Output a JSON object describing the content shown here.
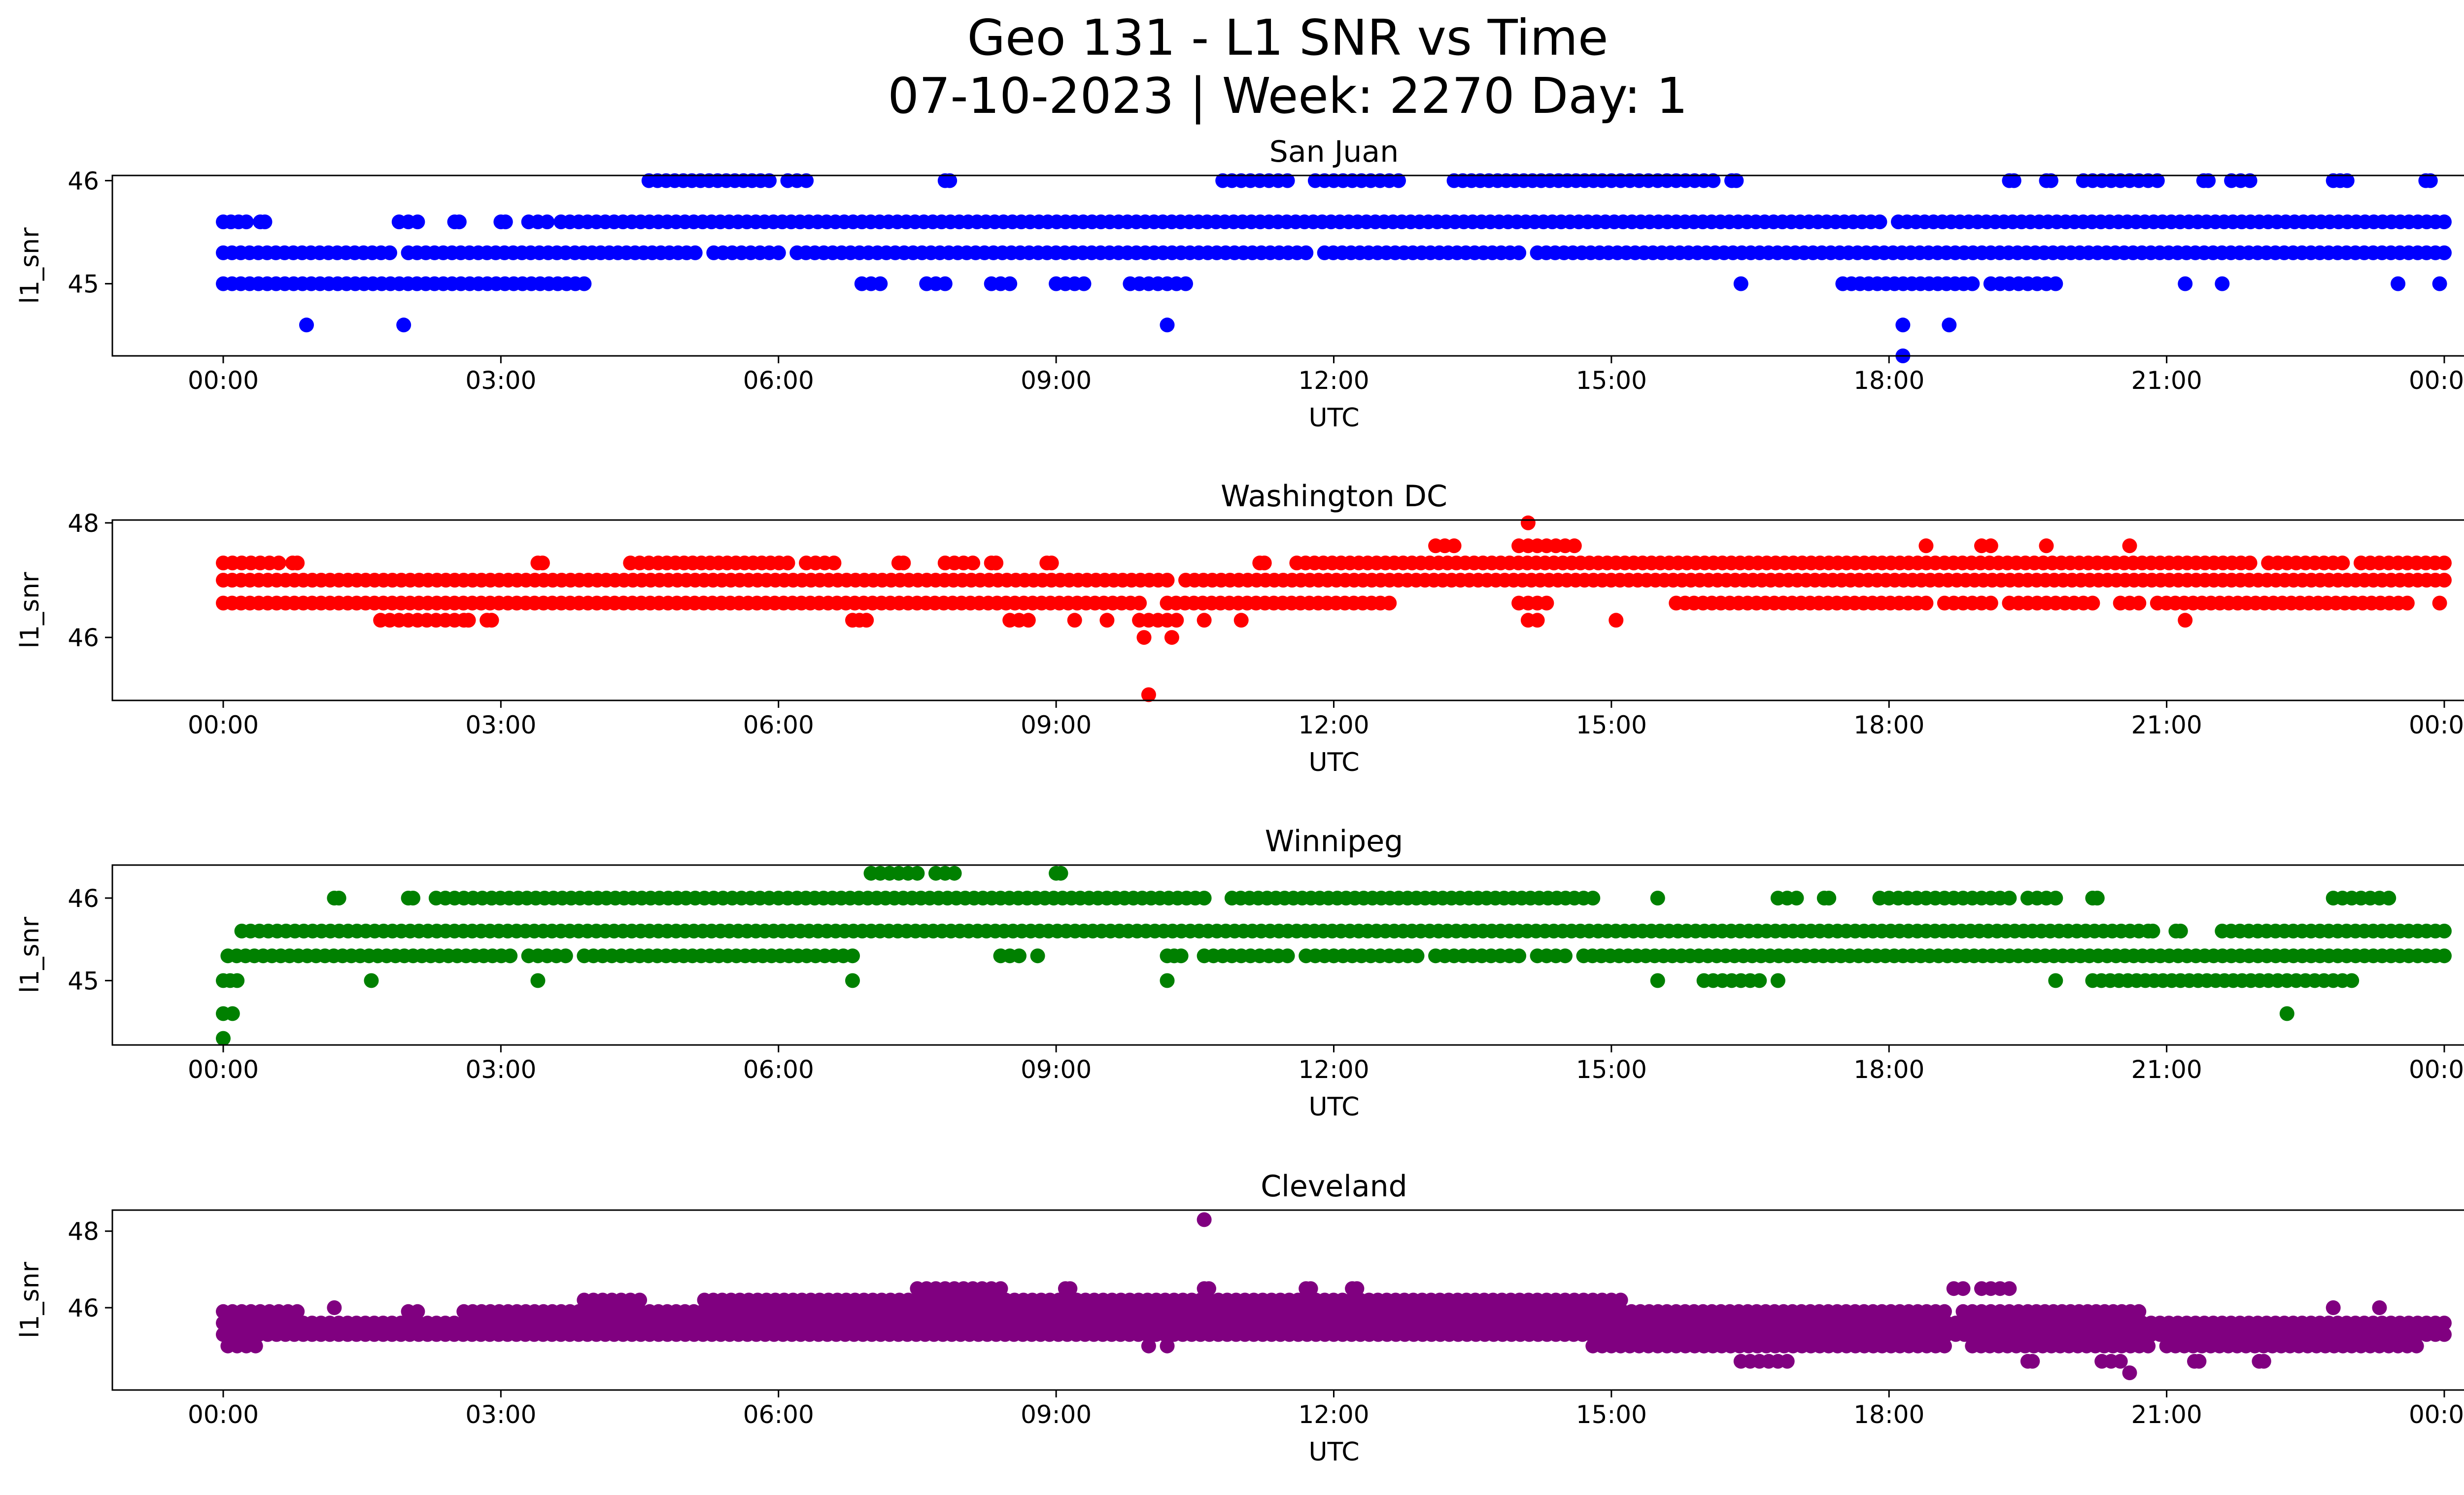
{
  "figure": {
    "title_line1": "Geo 131 - L1 SNR vs Time",
    "title_line2": "07-10-2023 | Week: 2270 Day: 1"
  },
  "chart_data": [
    {
      "type": "scatter",
      "title": "San Juan",
      "xlabel": "UTC",
      "ylabel": "l1_snr",
      "color": "#0000ff",
      "xlim": [
        "2023-07-10 00:00",
        "2023-07-11 00:00"
      ],
      "ylim": [
        44.3,
        46.05
      ],
      "xticks": [
        "00:00",
        "03:00",
        "06:00",
        "09:00",
        "12:00",
        "15:00",
        "18:00",
        "21:00",
        "00:00"
      ],
      "yticks": [
        45,
        46
      ],
      "x_unit": "hours UTC",
      "series": [
        {
          "y": 45.3,
          "ranges": [
            [
              0.0,
              1.8
            ],
            [
              2.0,
              3.7
            ],
            [
              3.8,
              5.1
            ],
            [
              5.3,
              6.0
            ],
            [
              6.2,
              11.7
            ],
            [
              11.9,
              14.0
            ],
            [
              14.2,
              24.0
            ]
          ]
        },
        {
          "y": 45.6,
          "ranges": [
            [
              0.0,
              0.25
            ],
            [
              0.4,
              0.45
            ],
            [
              1.9,
              2.1
            ],
            [
              2.5,
              2.55
            ],
            [
              3.0,
              3.05
            ],
            [
              3.3,
              3.5
            ],
            [
              3.65,
              17.9
            ],
            [
              18.1,
              24.0
            ]
          ]
        },
        {
          "y": 45.0,
          "ranges": [
            [
              0.0,
              3.9
            ],
            [
              6.9,
              7.1
            ],
            [
              7.6,
              7.8
            ],
            [
              8.3,
              8.5
            ],
            [
              9.0,
              9.3
            ],
            [
              9.8,
              10.4
            ],
            [
              17.5,
              18.9
            ],
            [
              19.1,
              19.8
            ]
          ]
        },
        {
          "y": 46.0,
          "ranges": [
            [
              4.6,
              5.9
            ],
            [
              6.1,
              6.3
            ],
            [
              7.8,
              7.85
            ],
            [
              10.8,
              11.3
            ],
            [
              11.4,
              11.5
            ],
            [
              11.8,
              12.7
            ],
            [
              13.3,
              14.9
            ],
            [
              15.0,
              16.1
            ],
            [
              16.3,
              16.35
            ],
            [
              19.3,
              19.35
            ],
            [
              19.7,
              19.75
            ],
            [
              20.1,
              20.7
            ],
            [
              20.8,
              20.9
            ],
            [
              21.4,
              21.45
            ],
            [
              21.7,
              21.9
            ],
            [
              22.8,
              22.95
            ],
            [
              23.8,
              23.85
            ]
          ]
        },
        {
          "y": 44.6,
          "points": [
            0.9,
            1.95,
            10.2,
            18.15,
            18.65
          ]
        },
        {
          "y": 44.3,
          "points": [
            18.15
          ]
        },
        {
          "y": 45.0,
          "points": [
            16.4,
            21.2,
            21.6,
            23.5,
            23.95
          ]
        }
      ]
    },
    {
      "type": "scatter",
      "title": "Washington DC",
      "xlabel": "UTC",
      "ylabel": "l1_snr",
      "color": "#ff0000",
      "xlim": [
        "2023-07-10 00:00",
        "2023-07-11 00:00"
      ],
      "ylim": [
        44.9,
        48.05
      ],
      "xticks": [
        "00:00",
        "03:00",
        "06:00",
        "09:00",
        "12:00",
        "15:00",
        "18:00",
        "21:00",
        "00:00"
      ],
      "yticks": [
        46,
        48
      ],
      "x_unit": "hours UTC",
      "series": [
        {
          "y": 46.6,
          "ranges": [
            [
              0.0,
              9.9
            ],
            [
              10.2,
              12.6
            ],
            [
              14.0,
              14.3
            ],
            [
              15.7,
              18.4
            ],
            [
              18.6,
              19.1
            ],
            [
              19.3,
              20.2
            ],
            [
              20.5,
              20.7
            ],
            [
              20.9,
              23.6
            ]
          ]
        },
        {
          "y": 47.0,
          "ranges": [
            [
              0.0,
              10.2
            ],
            [
              10.4,
              24.0
            ]
          ]
        },
        {
          "y": 47.3,
          "ranges": [
            [
              0.0,
              0.3
            ],
            [
              0.4,
              0.6
            ],
            [
              0.75,
              0.8
            ],
            [
              3.4,
              3.45
            ],
            [
              4.4,
              4.6
            ],
            [
              4.7,
              6.1
            ],
            [
              6.3,
              6.6
            ],
            [
              7.3,
              7.35
            ],
            [
              7.8,
              8.1
            ],
            [
              8.3,
              8.35
            ],
            [
              8.9,
              8.95
            ],
            [
              11.2,
              11.25
            ],
            [
              11.6,
              18.5
            ],
            [
              18.6,
              21.9
            ],
            [
              22.1,
              22.9
            ],
            [
              23.1,
              24.0
            ]
          ]
        },
        {
          "y": 46.3,
          "ranges": [
            [
              1.7,
              2.5
            ],
            [
              2.6,
              2.65
            ],
            [
              2.85,
              2.9
            ],
            [
              6.8,
              6.95
            ],
            [
              8.5,
              8.7
            ],
            [
              9.9,
              10.3
            ],
            [
              14.1,
              14.2
            ]
          ]
        },
        {
          "y": 47.6,
          "ranges": [
            [
              13.1,
              13.3
            ],
            [
              14.0,
              14.3
            ],
            [
              14.4,
              14.6
            ]
          ]
        },
        {
          "y": 46.3,
          "points": [
            9.2,
            9.55,
            10.6,
            11.0,
            15.05,
            21.2
          ]
        },
        {
          "y": 46.0,
          "points": [
            9.95,
            10.25
          ]
        },
        {
          "y": 48.0,
          "points": [
            14.1
          ]
        },
        {
          "y": 45.0,
          "points": [
            10.0
          ]
        },
        {
          "y": 47.6,
          "points": [
            18.4,
            19.0,
            19.1,
            19.7,
            20.6
          ]
        },
        {
          "y": 46.6,
          "points": [
            23.95
          ]
        }
      ]
    },
    {
      "type": "scatter",
      "title": "Winnipeg",
      "xlabel": "UTC",
      "ylabel": "l1_snr",
      "color": "#008000",
      "xlim": [
        "2023-07-10 00:00",
        "2023-07-11 00:00"
      ],
      "ylim": [
        44.22,
        46.4
      ],
      "xticks": [
        "00:00",
        "03:00",
        "06:00",
        "09:00",
        "12:00",
        "15:00",
        "18:00",
        "21:00",
        "00:00"
      ],
      "yticks": [
        45,
        46
      ],
      "x_unit": "hours UTC",
      "series": [
        {
          "y": 45.6,
          "ranges": [
            [
              0.2,
              20.7
            ],
            [
              20.8,
              20.85
            ],
            [
              21.1,
              21.15
            ],
            [
              21.6,
              24.0
            ]
          ]
        },
        {
          "y": 45.3,
          "ranges": [
            [
              0.05,
              3.1
            ],
            [
              3.3,
              3.5
            ],
            [
              3.6,
              3.7
            ],
            [
              3.9,
              4.4
            ],
            [
              4.5,
              6.4
            ],
            [
              6.5,
              6.8
            ],
            [
              8.4,
              8.6
            ],
            [
              10.2,
              10.35
            ],
            [
              10.6,
              11.5
            ],
            [
              11.7,
              12.0
            ],
            [
              12.0,
              12.9
            ],
            [
              13.1,
              13.6
            ],
            [
              13.7,
              14.0
            ],
            [
              14.2,
              14.5
            ],
            [
              14.7,
              24.0
            ]
          ]
        },
        {
          "y": 46.0,
          "ranges": [
            [
              1.2,
              1.25
            ],
            [
              2.0,
              2.05
            ],
            [
              2.3,
              2.5
            ],
            [
              2.6,
              2.9
            ],
            [
              2.9,
              5.0
            ],
            [
              5.1,
              6.1
            ],
            [
              6.2,
              10.6
            ],
            [
              10.9,
              14.6
            ],
            [
              14.7,
              14.8
            ],
            [
              16.8,
              17.0
            ],
            [
              17.3,
              17.35
            ],
            [
              17.9,
              18.6
            ],
            [
              18.7,
              19.3
            ],
            [
              19.5,
              19.8
            ],
            [
              20.2,
              20.25
            ],
            [
              22.8,
              23.0
            ],
            [
              23.1,
              23.4
            ]
          ]
        },
        {
          "y": 45.0,
          "ranges": [
            [
              0.0,
              0.15
            ],
            [
              16.0,
              16.6
            ],
            [
              20.2,
              22.1
            ],
            [
              22.2,
              23.0
            ]
          ]
        },
        {
          "y": 46.3,
          "ranges": [
            [
              7.0,
              7.5
            ],
            [
              7.7,
              7.9
            ],
            [
              9.0,
              9.05
            ]
          ]
        },
        {
          "y": 45.0,
          "points": [
            1.6,
            3.4,
            6.8,
            10.2,
            15.5,
            16.8,
            19.8
          ]
        },
        {
          "y": 44.6,
          "points": [
            0.0,
            0.1,
            22.3
          ]
        },
        {
          "y": 44.3,
          "points": [
            0.0
          ]
        },
        {
          "y": 46.0,
          "points": [
            15.5
          ]
        },
        {
          "y": 45.3,
          "points": [
            8.8
          ]
        }
      ]
    },
    {
      "type": "scatter",
      "title": "Cleveland",
      "xlabel": "UTC",
      "ylabel": "l1_snr",
      "color": "#800080",
      "xlim": [
        "2023-07-10 00:00",
        "2023-07-11 00:00"
      ],
      "ylim": [
        43.85,
        48.55
      ],
      "xticks": [
        "00:00",
        "03:00",
        "06:00",
        "09:00",
        "12:00",
        "15:00",
        "18:00",
        "21:00",
        "00:00"
      ],
      "yticks": [
        46,
        48
      ],
      "x_unit": "hours UTC",
      "series": [
        {
          "y": 45.3,
          "ranges": [
            [
              0.0,
              24.0
            ]
          ]
        },
        {
          "y": 45.6,
          "ranges": [
            [
              0.0,
              24.0
            ]
          ]
        },
        {
          "y": 45.9,
          "ranges": [
            [
              0.0,
              0.8
            ],
            [
              2.0,
              2.1
            ],
            [
              2.6,
              15.6
            ],
            [
              15.7,
              18.6
            ],
            [
              18.8,
              19.4
            ],
            [
              19.5,
              20.7
            ]
          ]
        },
        {
          "y": 46.2,
          "ranges": [
            [
              3.9,
              4.5
            ],
            [
              5.2,
              14.2
            ],
            [
              14.3,
              15.1
            ]
          ]
        },
        {
          "y": 46.5,
          "ranges": [
            [
              7.5,
              8.4
            ],
            [
              9.1,
              9.15
            ],
            [
              10.6,
              10.65
            ],
            [
              11.7,
              11.75
            ],
            [
              12.2,
              12.25
            ],
            [
              18.7,
              18.8
            ],
            [
              19.0,
              19.3
            ]
          ]
        },
        {
          "y": 45.0,
          "ranges": [
            [
              0.05,
              0.35
            ],
            [
              14.8,
              15.5
            ],
            [
              15.6,
              16.0
            ],
            [
              16.0,
              18.6
            ],
            [
              18.9,
              20.8
            ],
            [
              21.0,
              23.0
            ],
            [
              23.1,
              23.7
            ]
          ]
        },
        {
          "y": 44.6,
          "ranges": [
            [
              16.4,
              16.9
            ],
            [
              19.5,
              19.55
            ],
            [
              20.3,
              20.5
            ],
            [
              21.3,
              21.35
            ],
            [
              22.0,
              22.05
            ]
          ]
        },
        {
          "y": 44.3,
          "points": [
            20.6
          ]
        },
        {
          "y": 48.3,
          "points": [
            10.6
          ]
        },
        {
          "y": 46.0,
          "points": [
            1.2,
            22.8,
            23.3
          ]
        },
        {
          "y": 45.0,
          "points": [
            10.0,
            10.2
          ]
        }
      ]
    }
  ]
}
